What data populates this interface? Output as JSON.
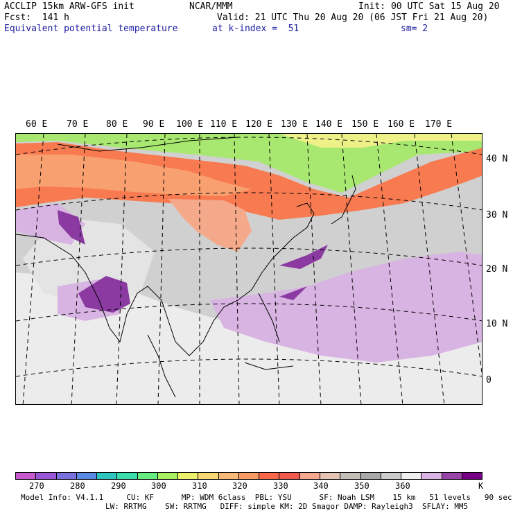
{
  "header": {
    "model": "ACCLIP 15km ARW-GFS init",
    "org": "NCAR/MMM",
    "init": "Init: 00 UTC Sat 15 Aug 20",
    "fcst": "Fcst:  141 h",
    "valid": "Valid: 21 UTC Thu 20 Aug 20 (06 JST Fri 21 Aug 20)",
    "field": "Equivalent potential temperature",
    "level": "at k-index =  51",
    "smooth": "sm= 2"
  },
  "lon_labels": [
    "60 E",
    "70 E",
    "80 E",
    "90 E",
    "100 E",
    "110 E",
    "120 E",
    "130 E",
    "140 E",
    "150 E",
    "160 E",
    "170 E"
  ],
  "lat_labels": [
    "40 N",
    "30 N",
    "20 N",
    "10 N",
    "0"
  ],
  "colorbar": {
    "colors": [
      "#c85ad0",
      "#9a56d8",
      "#7a70e0",
      "#5a8ae6",
      "#30c6c0",
      "#3adcaa",
      "#66ec80",
      "#a8f060",
      "#ecf06a",
      "#f8d872",
      "#f8b878",
      "#f89a64",
      "#f86848",
      "#f25a50",
      "#f6a890",
      "#e6c4b4",
      "#c4beb8",
      "#a8a8a8",
      "#cccccc",
      "#f0f0f0",
      "#dcb4e4",
      "#9844a8",
      "#780088"
    ],
    "ticks": [
      "270",
      "280",
      "290",
      "300",
      "310",
      "320",
      "330",
      "340",
      "350",
      "360"
    ],
    "unit": "K"
  },
  "footer": {
    "line1": "Model Info: V4.1.1     CU: KF      MP: WDM 6class  PBL: YSU      SF: Noah LSM    15 km   51 levels   90 sec",
    "line2": "LW: RRTMG    SW: RRTMG   DIFF: simple KM: 2D Smagor DAMP: Rayleigh3  SFLAY: MM5"
  }
}
